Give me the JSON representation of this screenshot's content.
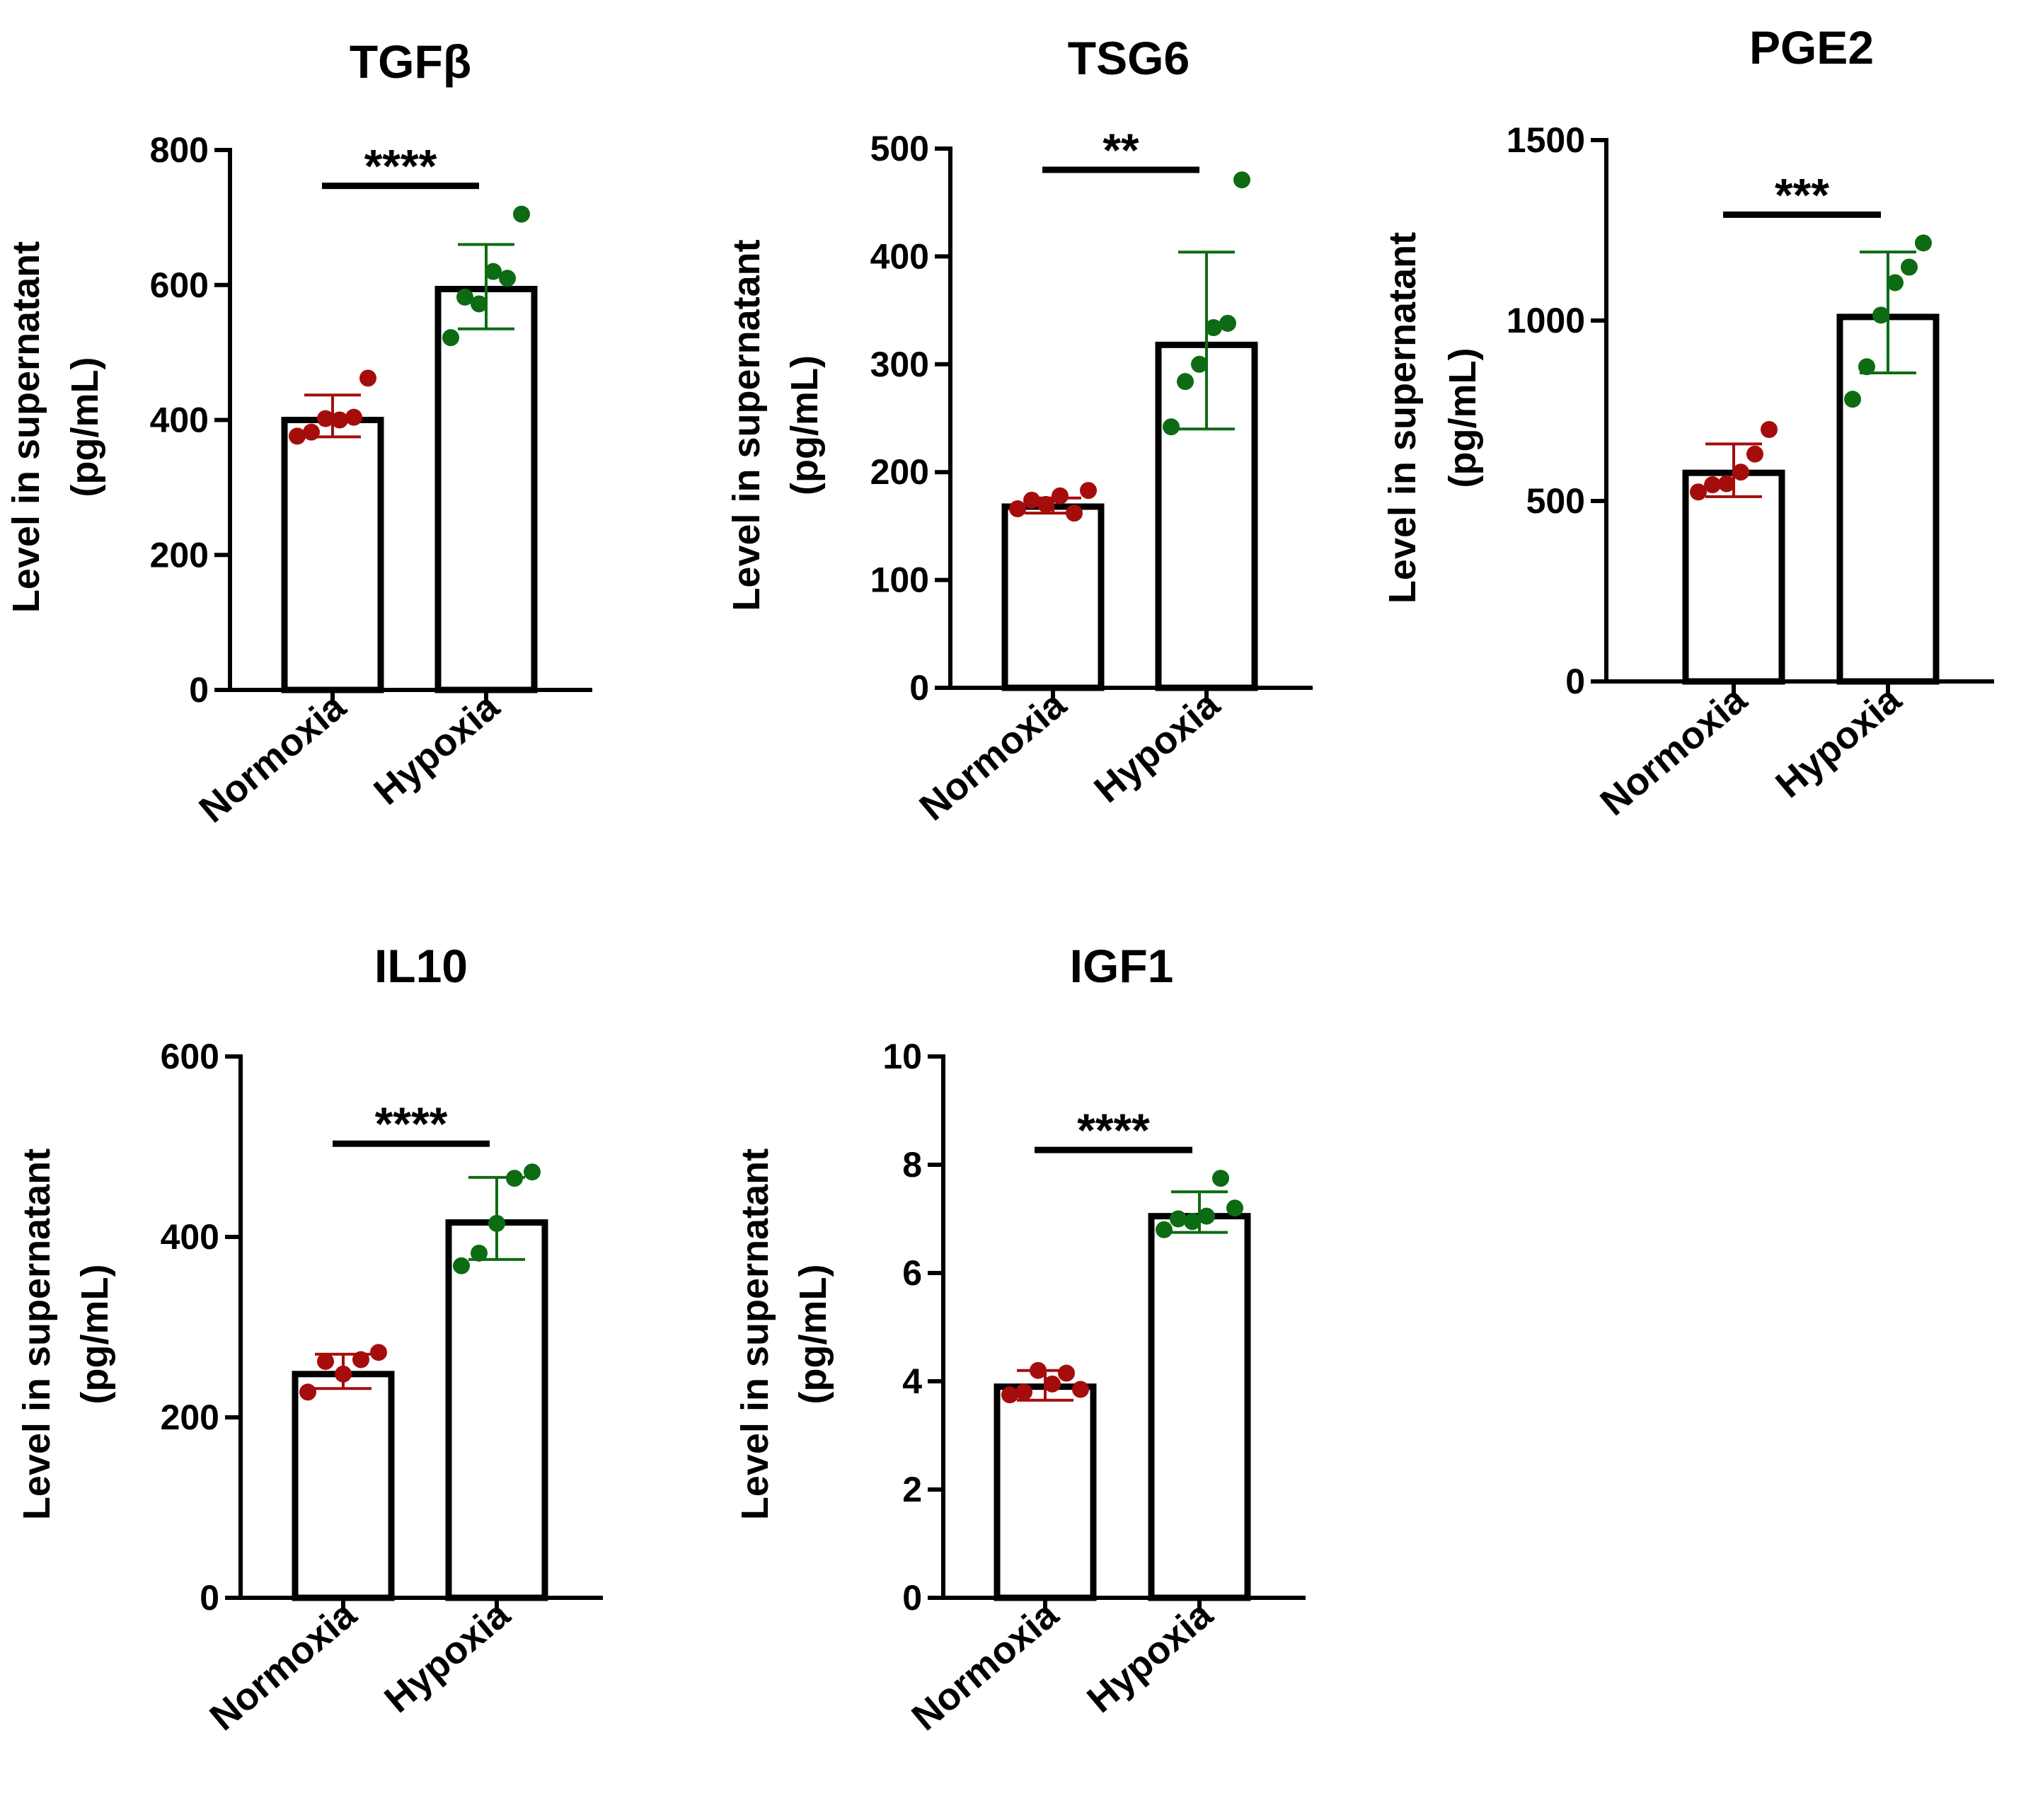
{
  "figure": {
    "colors": {
      "normoxia": "#a50d0d",
      "hypoxia": "#0d6b13",
      "bar_stroke": "#000000",
      "bar_fill": "#ffffff"
    }
  },
  "chart_data": [
    {
      "type": "bar",
      "title": "TGFβ",
      "ylabel": "Level in supernatant",
      "ylabel_unit": "(pg/mL)",
      "categories": [
        "Normoxia",
        "Hypoxia"
      ],
      "ylim": [
        0,
        800
      ],
      "yticks": [
        0,
        200,
        400,
        600,
        800
      ],
      "ytick_labels": [
        "0",
        "200",
        "400",
        "600",
        "800"
      ],
      "series": [
        {
          "name": "Normoxia",
          "mean": 400,
          "err_low": 375,
          "err_high": 437,
          "points": [
            376,
            382,
            402,
            400,
            404,
            462
          ]
        },
        {
          "name": "Hypoxia",
          "mean": 594,
          "err_low": 535,
          "err_high": 660,
          "points": [
            522,
            582,
            572,
            620,
            610,
            705
          ]
        }
      ],
      "significance": "****"
    },
    {
      "type": "bar",
      "title": "TSG6",
      "ylabel": "Level in supernatant",
      "ylabel_unit": "(pg/mL)",
      "categories": [
        "Normoxia",
        "Hypoxia"
      ],
      "ylim": [
        0,
        500
      ],
      "yticks": [
        0,
        100,
        200,
        300,
        400,
        500
      ],
      "ytick_labels": [
        "0",
        "100",
        "200",
        "300",
        "400",
        "500"
      ],
      "series": [
        {
          "name": "Normoxia",
          "mean": 168,
          "err_low": 162,
          "err_high": 176,
          "points": [
            166,
            174,
            170,
            178,
            162,
            183
          ]
        },
        {
          "name": "Hypoxia",
          "mean": 318,
          "err_low": 240,
          "err_high": 404,
          "points": [
            242,
            284,
            300,
            334,
            338,
            471
          ]
        }
      ],
      "significance": "**"
    },
    {
      "type": "bar",
      "title": "PGE2",
      "ylabel": "Level in supernatant",
      "ylabel_unit": "(pg/mL)",
      "categories": [
        "Normoxia",
        "Hypoxia"
      ],
      "ylim": [
        0,
        1500
      ],
      "yticks": [
        0,
        500,
        1000,
        1500
      ],
      "ytick_labels": [
        "0",
        "500",
        "1000",
        "1500"
      ],
      "series": [
        {
          "name": "Normoxia",
          "mean": 578,
          "err_low": 512,
          "err_high": 658,
          "points": [
            525,
            545,
            548,
            580,
            630,
            698
          ]
        },
        {
          "name": "Hypoxia",
          "mean": 1010,
          "err_low": 855,
          "err_high": 1190,
          "points": [
            782,
            872,
            1015,
            1105,
            1148,
            1215
          ]
        }
      ],
      "significance": "***"
    },
    {
      "type": "bar",
      "title": "IL10",
      "ylabel": "Level in supernatant",
      "ylabel_unit": "(pg/mL)",
      "categories": [
        "Normoxia",
        "Hypoxia"
      ],
      "ylim": [
        0,
        600
      ],
      "yticks": [
        0,
        200,
        400,
        600
      ],
      "ytick_labels": [
        "0",
        "200",
        "400",
        "600"
      ],
      "series": [
        {
          "name": "Normoxia",
          "mean": 248,
          "err_low": 232,
          "err_high": 270,
          "points": [
            228,
            262,
            248,
            264,
            272
          ]
        },
        {
          "name": "Hypoxia",
          "mean": 416,
          "err_low": 375,
          "err_high": 466,
          "points": [
            368,
            382,
            415,
            465,
            472
          ]
        }
      ],
      "significance": "****"
    },
    {
      "type": "bar",
      "title": "IGF1",
      "ylabel": "Level in supernatant",
      "ylabel_unit": "(pg/mL)",
      "categories": [
        "Normoxia",
        "Hypoxia"
      ],
      "ylim": [
        0,
        10
      ],
      "yticks": [
        0,
        2,
        4,
        6,
        8,
        10
      ],
      "ytick_labels": [
        "0",
        "2",
        "4",
        "6",
        "8",
        "10"
      ],
      "series": [
        {
          "name": "Normoxia",
          "mean": 3.9,
          "err_low": 3.65,
          "err_high": 4.2,
          "points": [
            3.75,
            3.8,
            4.2,
            3.95,
            4.15,
            3.85
          ]
        },
        {
          "name": "Hypoxia",
          "mean": 7.05,
          "err_low": 6.75,
          "err_high": 7.5,
          "points": [
            6.8,
            7.0,
            6.95,
            7.05,
            7.75,
            7.2
          ]
        }
      ],
      "significance": "****"
    }
  ]
}
